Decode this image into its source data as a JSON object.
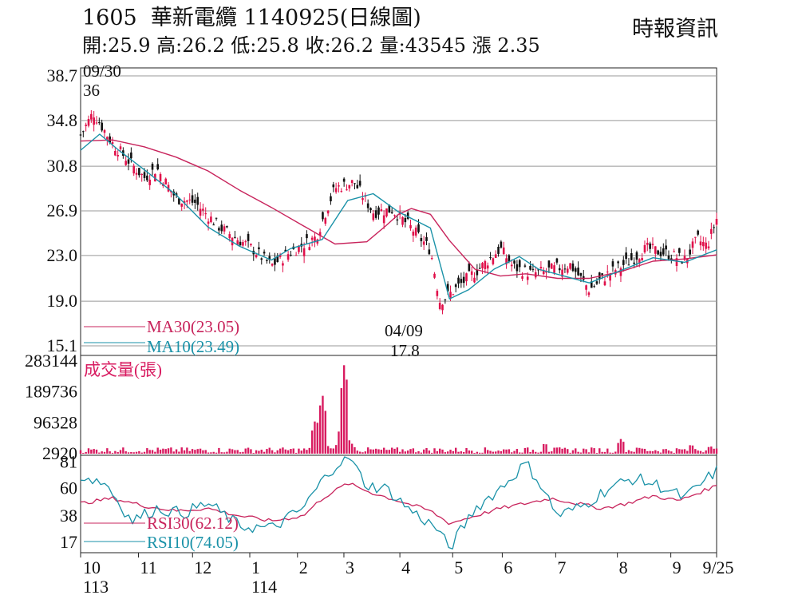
{
  "header": {
    "stock_code": "1605",
    "stock_name": "華新電纜",
    "date_code": "1140925",
    "chart_kind": "(日線圖)",
    "quote_line": "開:25.9 高:26.2 低:25.8 收:26.2 量:43545 漲 2.35",
    "source": "時報資訊"
  },
  "colors": {
    "ma30": "#c8245c",
    "ma10": "#1a92a8",
    "rsi30": "#c8245c",
    "rsi10": "#1a92a8",
    "up": "#e0104a",
    "down": "#111111",
    "volume": "#d81b60",
    "grid": "#999999"
  },
  "chart_data": [
    {
      "type": "candlestick",
      "panel": "price",
      "y_ticks": [
        "38.7",
        "34.8",
        "30.8",
        "26.9",
        "23.0",
        "19.0",
        "15.1"
      ],
      "ylim": [
        15.1,
        38.7
      ],
      "grid": true,
      "annotations": [
        {
          "label_date": "09/30",
          "label_value": "36",
          "x": "113/09/30",
          "y": 36
        },
        {
          "label_date": "04/09",
          "label_value": "17.8",
          "x": "114/04/09",
          "y": 17.8
        }
      ],
      "series": [
        {
          "name": "MA30(23.05)",
          "color_key": "ma30",
          "last": 23.05,
          "points": [
            [
              0,
              33.0
            ],
            [
              0.05,
              33.1
            ],
            [
              0.1,
              32.5
            ],
            [
              0.15,
              31.6
            ],
            [
              0.2,
              30.4
            ],
            [
              0.25,
              28.7
            ],
            [
              0.3,
              27.2
            ],
            [
              0.35,
              25.6
            ],
            [
              0.4,
              24.0
            ],
            [
              0.45,
              24.2
            ],
            [
              0.48,
              25.6
            ],
            [
              0.5,
              26.6
            ],
            [
              0.52,
              27.1
            ],
            [
              0.55,
              26.6
            ],
            [
              0.58,
              24.3
            ],
            [
              0.62,
              21.8
            ],
            [
              0.66,
              21.2
            ],
            [
              0.7,
              21.4
            ],
            [
              0.75,
              21.0
            ],
            [
              0.8,
              21.0
            ],
            [
              0.85,
              21.6
            ],
            [
              0.9,
              22.5
            ],
            [
              0.95,
              22.7
            ],
            [
              1.0,
              23.05
            ]
          ]
        },
        {
          "name": "MA10(23.49)",
          "color_key": "ma10",
          "last": 23.49,
          "points": [
            [
              0,
              32.2
            ],
            [
              0.03,
              33.6
            ],
            [
              0.06,
              32.2
            ],
            [
              0.1,
              30.5
            ],
            [
              0.15,
              28.3
            ],
            [
              0.2,
              25.5
            ],
            [
              0.25,
              23.8
            ],
            [
              0.3,
              22.6
            ],
            [
              0.33,
              23.6
            ],
            [
              0.38,
              24.4
            ],
            [
              0.42,
              27.8
            ],
            [
              0.46,
              28.4
            ],
            [
              0.5,
              26.8
            ],
            [
              0.55,
              25.4
            ],
            [
              0.58,
              19.2
            ],
            [
              0.61,
              20.0
            ],
            [
              0.65,
              21.8
            ],
            [
              0.69,
              22.9
            ],
            [
              0.72,
              21.8
            ],
            [
              0.76,
              21.2
            ],
            [
              0.8,
              20.6
            ],
            [
              0.85,
              21.7
            ],
            [
              0.9,
              22.8
            ],
            [
              0.95,
              22.4
            ],
            [
              1.0,
              23.49
            ]
          ]
        }
      ],
      "ohlc_path": [
        [
          0,
          33.5
        ],
        [
          0.02,
          35.5
        ],
        [
          0.05,
          32.8
        ],
        [
          0.1,
          29.8
        ],
        [
          0.12,
          30.6
        ],
        [
          0.15,
          28.0
        ],
        [
          0.18,
          27.6
        ],
        [
          0.22,
          25.4
        ],
        [
          0.27,
          23.6
        ],
        [
          0.3,
          22.1
        ],
        [
          0.33,
          23.3
        ],
        [
          0.37,
          24.6
        ],
        [
          0.4,
          28.9
        ],
        [
          0.43,
          29.4
        ],
        [
          0.46,
          26.8
        ],
        [
          0.49,
          27.0
        ],
        [
          0.52,
          25.4
        ],
        [
          0.55,
          23.5
        ],
        [
          0.565,
          19.0
        ],
        [
          0.58,
          19.6
        ],
        [
          0.6,
          20.6
        ],
        [
          0.63,
          22.0
        ],
        [
          0.66,
          23.6
        ],
        [
          0.68,
          22.0
        ],
        [
          0.71,
          21.4
        ],
        [
          0.73,
          21.6
        ],
        [
          0.77,
          22.2
        ],
        [
          0.8,
          20.0
        ],
        [
          0.83,
          21.4
        ],
        [
          0.86,
          22.4
        ],
        [
          0.89,
          23.6
        ],
        [
          0.92,
          23.2
        ],
        [
          0.95,
          22.6
        ],
        [
          0.97,
          24.4
        ],
        [
          0.985,
          23.8
        ],
        [
          1.0,
          26.2
        ]
      ]
    },
    {
      "type": "bar",
      "panel": "volume",
      "title": "成交量(張)",
      "y_ticks": [
        "283144",
        "189736",
        "96328",
        "2920"
      ],
      "ylim": [
        2920,
        283144
      ],
      "spikes": [
        [
          0.37,
          112000
        ],
        [
          0.38,
          186000
        ],
        [
          0.41,
          92000
        ],
        [
          0.412,
          68000
        ],
        [
          0.415,
          283144
        ],
        [
          0.52,
          18000
        ],
        [
          0.73,
          36000
        ],
        [
          0.85,
          49000
        ],
        [
          0.88,
          22000
        ],
        [
          0.96,
          32000
        ],
        [
          0.99,
          27000
        ]
      ],
      "base": 13000
    },
    {
      "type": "line",
      "panel": "rsi",
      "y_ticks": [
        "81",
        "60",
        "38",
        "17"
      ],
      "ylim": [
        10,
        85
      ],
      "series": [
        {
          "name": "RSI30(62.12)",
          "color_key": "rsi30",
          "last": 62.12,
          "points": [
            [
              0,
              48
            ],
            [
              0.05,
              52
            ],
            [
              0.1,
              46
            ],
            [
              0.15,
              42
            ],
            [
              0.2,
              44
            ],
            [
              0.25,
              38
            ],
            [
              0.3,
              34
            ],
            [
              0.35,
              38
            ],
            [
              0.38,
              52
            ],
            [
              0.42,
              64
            ],
            [
              0.46,
              56
            ],
            [
              0.5,
              50
            ],
            [
              0.55,
              42
            ],
            [
              0.58,
              32
            ],
            [
              0.62,
              38
            ],
            [
              0.66,
              44
            ],
            [
              0.7,
              48
            ],
            [
              0.74,
              52
            ],
            [
              0.78,
              48
            ],
            [
              0.82,
              44
            ],
            [
              0.86,
              48
            ],
            [
              0.9,
              54
            ],
            [
              0.94,
              50
            ],
            [
              1.0,
              62.12
            ]
          ]
        },
        {
          "name": "RSI10(74.05)",
          "color_key": "rsi10",
          "last": 74.05,
          "points": [
            [
              0,
              70
            ],
            [
              0.04,
              64
            ],
            [
              0.08,
              34
            ],
            [
              0.12,
              44
            ],
            [
              0.16,
              40
            ],
            [
              0.2,
              48
            ],
            [
              0.25,
              30
            ],
            [
              0.3,
              28
            ],
            [
              0.35,
              44
            ],
            [
              0.38,
              66
            ],
            [
              0.4,
              78
            ],
            [
              0.42,
              86
            ],
            [
              0.45,
              62
            ],
            [
              0.48,
              60
            ],
            [
              0.52,
              42
            ],
            [
              0.56,
              28
            ],
            [
              0.58,
              12
            ],
            [
              0.62,
              44
            ],
            [
              0.66,
              60
            ],
            [
              0.7,
              80
            ],
            [
              0.72,
              66
            ],
            [
              0.75,
              38
            ],
            [
              0.79,
              46
            ],
            [
              0.83,
              60
            ],
            [
              0.87,
              68
            ],
            [
              0.91,
              62
            ],
            [
              0.95,
              52
            ],
            [
              1.0,
              74.05
            ]
          ]
        }
      ]
    }
  ],
  "x_axis": {
    "month_labels": [
      "10",
      "11",
      "12",
      "1",
      "2",
      "3",
      "4",
      "5",
      "6",
      "7",
      "8",
      "9",
      "9/25"
    ],
    "month_positions": [
      0.0,
      0.091,
      0.176,
      0.266,
      0.341,
      0.414,
      0.502,
      0.585,
      0.663,
      0.747,
      0.844,
      0.928,
      1.0
    ],
    "year_labels": [
      {
        "text": "113",
        "pos": 0.0
      },
      {
        "text": "114",
        "pos": 0.266
      }
    ]
  }
}
